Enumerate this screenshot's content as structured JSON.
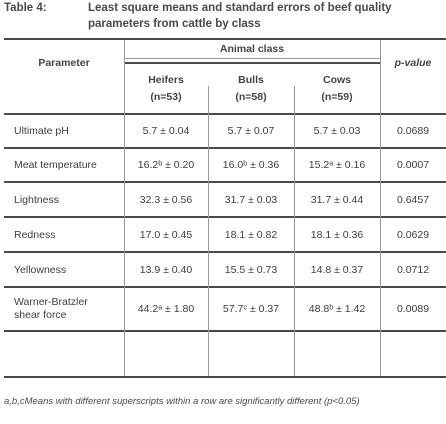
{
  "caption": {
    "label": "Table 4:",
    "text": "Least square means and standard errors of beef quality parameters from cattle by class"
  },
  "header": {
    "parameter": "Parameter",
    "group": "Animal class",
    "pvalue": "p-value",
    "classes": [
      {
        "name": "Heifers",
        "n": "(n=53)"
      },
      {
        "name": "Bulls",
        "n": "(n=58)"
      },
      {
        "name": "Cows",
        "n": "(n=59)"
      }
    ]
  },
  "rows": [
    {
      "parameter": "Ultimate pH",
      "heifers": "5.7 ± 0.04",
      "bulls": "5.7 ± 0.07",
      "cows": "5.7 ± 0.03",
      "p": "0.0689"
    },
    {
      "parameter": "Meat temperature",
      "heifers": "16.2ᵇ ± 0.20",
      "bulls": "16.0ᵇ ± 0.36",
      "cows": "15.2ᵃ ± 0.16",
      "p": "0.0007"
    },
    {
      "parameter": "Lightness",
      "heifers": "32.3 ± 0.56",
      "bulls": "31.7 ± 0.03",
      "cows": "31.7 ± 0.44",
      "p": "0.6457"
    },
    {
      "parameter": "Redness",
      "heifers": "17.0 ± 0.45",
      "bulls": "18.1 ± 0.82",
      "cows": "18.1 ± 0.36",
      "p": "0.0629"
    },
    {
      "parameter": "Yellowness",
      "heifers": "13.9 ± 0.40",
      "bulls": "15.5 ± 0.73",
      "cows": "14.8 ± 0.37",
      "p": "0.0712"
    },
    {
      "parameter": "Warner-Bratzler shear force",
      "heifers": "44.2ᵃ ± 1.80",
      "bulls": "57.7ᶜ ± 0.37",
      "cows": "48.8ᵇ ± 1.42",
      "p": "0.0089"
    }
  ],
  "footnote": "a,b,cMeans with different superscripts within a row are significantly different (p<0.05)"
}
